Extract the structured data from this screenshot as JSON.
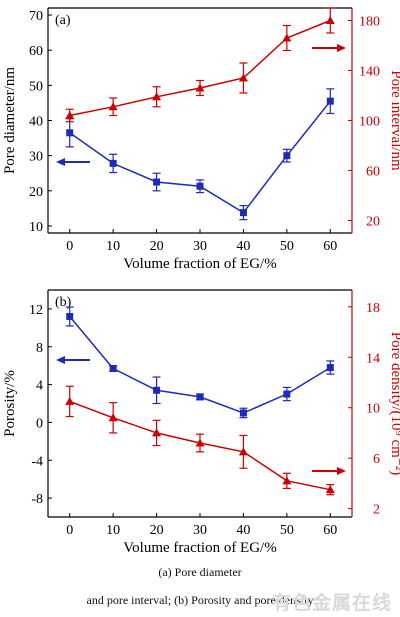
{
  "chart_data": [
    {
      "type": "line",
      "panel_label": "(a)",
      "x": [
        0,
        10,
        20,
        30,
        40,
        50,
        60
      ],
      "xlabel": "Volume fraction of EG/%",
      "xticks": [
        "0",
        "10",
        "20",
        "30",
        "40",
        "50",
        "60"
      ],
      "xlim": [
        -5,
        65
      ],
      "left_axis": {
        "label": "Pore diameter/nm",
        "ylim": [
          8,
          72
        ],
        "ticks": [
          10,
          20,
          30,
          40,
          50,
          60,
          70
        ],
        "color": "#000000"
      },
      "right_axis": {
        "label": "Pore interval/nm",
        "ylim": [
          10,
          190
        ],
        "ticks": [
          20,
          60,
          100,
          140,
          180
        ],
        "color": "#cc0000"
      },
      "series": [
        {
          "axis": "left",
          "color": "#1f2ab8",
          "marker": "square",
          "values": [
            36.5,
            27.8,
            22.5,
            21.3,
            13.8,
            30.0,
            45.5
          ],
          "errors": [
            4.0,
            2.6,
            2.5,
            1.8,
            2.0,
            1.8,
            3.5
          ]
        },
        {
          "axis": "right",
          "color": "#cc0000",
          "marker": "triangle",
          "values": [
            104,
            111,
            119,
            126,
            134,
            166,
            180
          ],
          "errors": [
            5,
            7,
            8,
            6,
            12,
            10,
            10
          ]
        }
      ]
    },
    {
      "type": "line",
      "panel_label": "(b)",
      "x": [
        0,
        10,
        20,
        30,
        40,
        50,
        60
      ],
      "xlabel": "Volume fraction of EG/%",
      "xticks": [
        "0",
        "10",
        "20",
        "30",
        "40",
        "50",
        "60"
      ],
      "xlim": [
        -5,
        65
      ],
      "left_axis": {
        "label": "Porosity/%",
        "ylim": [
          -10,
          14
        ],
        "ticks": [
          -8,
          -4,
          0,
          4,
          8,
          12
        ],
        "color": "#000000"
      },
      "right_axis": {
        "label": "Pore density/(10⁹ cm⁻²)",
        "ylim": [
          1.333,
          19.333
        ],
        "ticks": [
          2,
          6,
          10,
          14,
          18
        ],
        "color": "#cc0000"
      },
      "series": [
        {
          "axis": "left",
          "color": "#1f2ab8",
          "marker": "square",
          "values": [
            11.2,
            5.7,
            3.4,
            2.7,
            1.0,
            3.0,
            5.8
          ],
          "errors": [
            1.0,
            0.3,
            1.4,
            0.3,
            0.5,
            0.7,
            0.7
          ]
        },
        {
          "axis": "right",
          "color": "#cc0000",
          "marker": "triangle",
          "values": [
            10.5,
            9.2,
            8.0,
            7.2,
            6.5,
            4.2,
            3.5
          ],
          "errors": [
            1.2,
            1.2,
            1.0,
            0.7,
            1.3,
            0.6,
            0.4
          ]
        }
      ]
    }
  ],
  "caption": {
    "line1": "(a)  Pore  diameter",
    "line2": "and pore interval; (b) Porosity and pore density"
  },
  "watermark": {
    "text": "有色金属在线",
    "text2": "ol.com"
  }
}
